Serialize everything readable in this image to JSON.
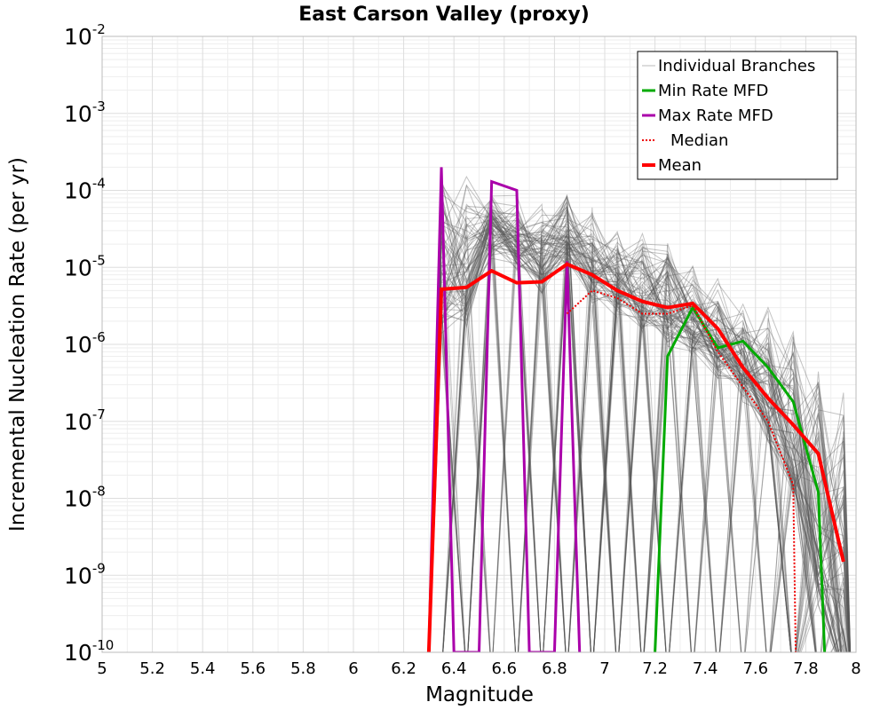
{
  "chart_data": {
    "type": "line",
    "title": "East Carson Valley (proxy)",
    "xlabel": "Magnitude",
    "ylabel": "Incremental Nucleation Rate (per yr)",
    "xlim": [
      5,
      8
    ],
    "ylim": [
      1e-10,
      0.01
    ],
    "y_scale": "log",
    "grid": true,
    "legend_position": "top-right",
    "x_ticks": [
      "5",
      "5.2",
      "5.4",
      "5.6",
      "5.8",
      "6",
      "6.2",
      "6.4",
      "6.6",
      "6.8",
      "7",
      "7.2",
      "7.4",
      "7.6",
      "7.8",
      "8"
    ],
    "y_ticks": [
      {
        "base": "10",
        "exp": "-10"
      },
      {
        "base": "10",
        "exp": "-9"
      },
      {
        "base": "10",
        "exp": "-8"
      },
      {
        "base": "10",
        "exp": "-7"
      },
      {
        "base": "10",
        "exp": "-6"
      },
      {
        "base": "10",
        "exp": "-5"
      },
      {
        "base": "10",
        "exp": "-4"
      },
      {
        "base": "10",
        "exp": "-3"
      },
      {
        "base": "10",
        "exp": "-2"
      }
    ],
    "series": [
      {
        "name": "Individual Branches",
        "color": "#555555",
        "style": "thin-gray-envelope",
        "x": [
          6.35,
          6.45,
          6.55,
          6.65,
          6.75,
          6.85,
          6.95,
          7.05,
          7.15,
          7.25,
          7.35,
          7.45,
          7.55,
          7.65,
          7.75,
          7.85,
          7.95
        ],
        "upper": [
          0.0002,
          0.0002,
          0.0001,
          9e-05,
          7e-05,
          0.00012,
          6e-05,
          4e-05,
          3e-05,
          2.5e-05,
          1.5e-05,
          8e-06,
          5e-06,
          3e-06,
          1.5e-06,
          8e-07,
          3e-07
        ],
        "mid": [
          3e-06,
          4e-06,
          3e-05,
          2e-05,
          1e-05,
          2e-05,
          8e-06,
          5e-06,
          3e-06,
          2e-06,
          1.5e-06,
          8e-07,
          4e-07,
          1e-07,
          2e-08,
          1e-09,
          5e-11
        ]
      },
      {
        "name": "Min Rate MFD",
        "color": "#00aa00",
        "x": [
          7.2,
          7.25,
          7.35,
          7.45,
          7.55,
          7.65,
          7.75,
          7.85,
          7.875
        ],
        "y": [
          1e-10,
          7e-07,
          3e-06,
          9e-07,
          1.1e-06,
          5e-07,
          1.8e-07,
          1.2e-08,
          1e-10
        ]
      },
      {
        "name": "Max Rate MFD",
        "color": "#aa00aa",
        "x": [
          6.3,
          6.35,
          6.4,
          6.5,
          6.55,
          6.65,
          6.7,
          6.8,
          6.85,
          6.9
        ],
        "y": [
          1e-10,
          0.0002,
          1e-10,
          1e-10,
          0.00013,
          0.0001,
          1e-10,
          1e-10,
          1.2e-05,
          1e-10
        ]
      },
      {
        "name": "Median",
        "color": "#ee0000",
        "dashed": true,
        "x": [
          6.85,
          6.95,
          7.05,
          7.15,
          7.25,
          7.35,
          7.45,
          7.55,
          7.65,
          7.75,
          7.76
        ],
        "y": [
          2.5e-06,
          5e-06,
          4e-06,
          2.5e-06,
          2.5e-06,
          3.2e-06,
          8e-07,
          2.8e-07,
          1e-07,
          1.5e-08,
          1e-10
        ]
      },
      {
        "name": "Mean",
        "color": "#ff0000",
        "x": [
          6.3,
          6.35,
          6.45,
          6.55,
          6.65,
          6.75,
          6.85,
          6.95,
          7.05,
          7.15,
          7.25,
          7.35,
          7.45,
          7.55,
          7.65,
          7.75,
          7.85,
          7.95
        ],
        "y": [
          1e-10,
          5.2e-06,
          5.5e-06,
          9e-06,
          6.3e-06,
          6.5e-06,
          1.1e-05,
          8e-06,
          5e-06,
          3.6e-06,
          3e-06,
          3.4e-06,
          1.6e-06,
          5e-07,
          2e-07,
          9e-08,
          3.8e-08,
          1.5e-09
        ]
      }
    ]
  }
}
